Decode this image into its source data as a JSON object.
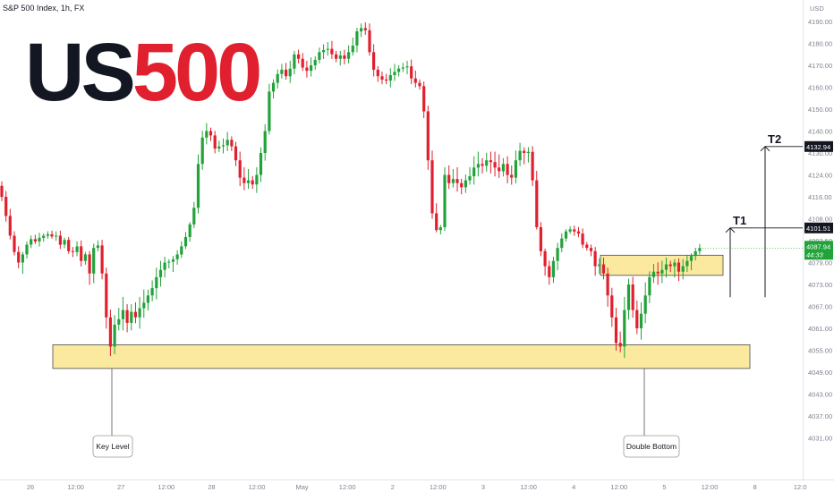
{
  "header": {
    "symbol": "S&P 500 Index, 1h, FX",
    "currency": "USD"
  },
  "logo": {
    "part1": "US",
    "part2": "500",
    "color1": "#131722",
    "color2": "#e0202e"
  },
  "colors": {
    "up": "#22a33a",
    "down": "#e0202e",
    "zone_fill": "#fbe9a0",
    "zone_stroke": "#4a4a4a",
    "current_price_badge": "#22a33a"
  },
  "chart_data": {
    "type": "candlestick",
    "y_range": [
      4027,
      4195
    ],
    "y_ticks": [
      {
        "value": 4190.0,
        "label": "4190.00"
      },
      {
        "value": 4180.0,
        "label": "4180.00"
      },
      {
        "value": 4170.0,
        "label": "4170.00"
      },
      {
        "value": 4160.0,
        "label": "4160.00"
      },
      {
        "value": 4150.0,
        "label": "4150.00"
      },
      {
        "value": 4140.0,
        "label": "4140.00"
      },
      {
        "value": 4130.0,
        "label": "4130.00"
      },
      {
        "value": 4124.0,
        "label": "4124.00"
      },
      {
        "value": 4116.0,
        "label": "4116.00"
      },
      {
        "value": 4108.0,
        "label": "4108.00"
      },
      {
        "value": 4092.5,
        "label": "4092.50"
      },
      {
        "value": 4079.0,
        "label": "4079.00"
      },
      {
        "value": 4073.0,
        "label": "4073.00"
      },
      {
        "value": 4067.0,
        "label": "4067.00"
      },
      {
        "value": 4061.0,
        "label": "4061.00"
      },
      {
        "value": 4055.0,
        "label": "4055.00"
      },
      {
        "value": 4049.0,
        "label": "4049.00"
      },
      {
        "value": 4043.0,
        "label": "4043.00"
      },
      {
        "value": 4037.0,
        "label": "4037.00"
      },
      {
        "value": 4031.0,
        "label": "4031.00"
      }
    ],
    "x_labels": [
      "26",
      "12:00",
      "27",
      "12:00",
      "28",
      "12:00",
      "May",
      "12:00",
      "2",
      "12:00",
      "3",
      "12:00",
      "4",
      "12:00",
      "5",
      "12:00",
      "8",
      "12:0"
    ],
    "price_labels": [
      {
        "value": 4132.94,
        "label": "4132.94"
      },
      {
        "value": 4101.51,
        "label": "4101.51"
      }
    ],
    "current_price": {
      "value": 4087.94,
      "label": "4087.94",
      "countdown": "44:33"
    },
    "zones": [
      {
        "name": "key-level-zone",
        "top": 4056.5,
        "bottom": 4050.0
      },
      {
        "name": "double-bottom-zone",
        "top": 4083.5,
        "bottom": 4075.5
      }
    ],
    "annotations": [
      {
        "name": "key-level-callout",
        "text": "Key Level"
      },
      {
        "name": "double-bottom-callout",
        "text": "Double Bottom"
      }
    ],
    "targets": [
      {
        "name": "target-1",
        "label": "T1",
        "price": 4101.51,
        "base": 4069.5
      },
      {
        "name": "target-2",
        "label": "T2",
        "price": 4132.94,
        "base": 4069.5
      }
    ],
    "closes": [
      4116.0,
      4109.0,
      4096.0,
      4085.5,
      4079.0,
      4084.0,
      4090.0,
      4093.5,
      4092.0,
      4094.5,
      4096.0,
      4097.0,
      4095.5,
      4096.0,
      4090.0,
      4093.0,
      4086.0,
      4085.5,
      4089.0,
      4080.0,
      4084.0,
      4076.0,
      4088.0,
      4089.5,
      4076.0,
      4064.0,
      4056.0,
      4062.0,
      4063.5,
      4066.0,
      4062.5,
      4065.5,
      4064.0,
      4066.5,
      4068.0,
      4070.0,
      4072.0,
      4075.0,
      4077.0,
      4079.0,
      4079.5,
      4081.0,
      4084.0,
      4089.0,
      4095.0,
      4104.0,
      4112.0,
      4127.0,
      4137.0,
      4140.0,
      4138.0,
      4132.0,
      4133.0,
      4133.5,
      4136.0,
      4133.0,
      4128.0,
      4123.0,
      4121.0,
      4122.0,
      4120.5,
      4124.0,
      4130.0,
      4140.0,
      4158.0,
      4162.0,
      4166.0,
      4168.0,
      4165.0,
      4168.5,
      4175.0,
      4173.0,
      4169.0,
      4167.5,
      4170.0,
      4172.5,
      4176.0,
      4177.0,
      4177.5,
      4175.0,
      4173.0,
      4174.5,
      4173.0,
      4176.0,
      4179.0,
      4185.5,
      4187.0,
      4186.0,
      4176.0,
      4168.0,
      4165.0,
      4163.5,
      4163.0,
      4165.5,
      4167.0,
      4168.5,
      4169.0,
      4169.5,
      4164.0,
      4162.0,
      4160.5,
      4149.0,
      4128.0,
      4110.0,
      4100.0,
      4102.0,
      4124.0,
      4121.0,
      4122.5,
      4121.0,
      4119.5,
      4122.0,
      4123.5,
      4126.0,
      4127.0,
      4126.5,
      4128.0,
      4127.5,
      4126.0,
      4125.0,
      4127.0,
      4124.0,
      4123.0,
      4128.0,
      4131.0,
      4130.0,
      4130.5,
      4122.0,
      4102.0,
      4086.0,
      4078.0,
      4075.0,
      4080.0,
      4088.0,
      4094.0,
      4099.0,
      4100.5,
      4099.0,
      4097.5,
      4090.0,
      4088.0,
      4086.0,
      4078.0,
      4078.5,
      4076.0,
      4070.0,
      4064.0,
      4057.0,
      4056.0,
      4066.0,
      4073.0,
      4066.0,
      4061.0,
      4065.0,
      4070.0,
      4075.0,
      4076.5,
      4076.0,
      4077.0,
      4078.5,
      4078.0,
      4079.0,
      4076.5,
      4078.0,
      4080.0,
      4083.0,
      4086.0,
      4087.94
    ]
  }
}
